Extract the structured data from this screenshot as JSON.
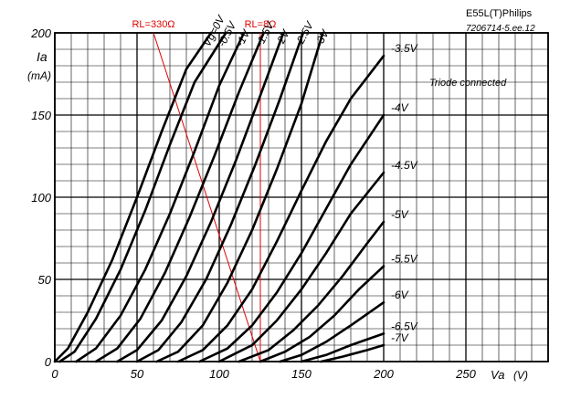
{
  "chart_data": {
    "type": "line",
    "title": "E55L(T)Philips",
    "code": "7206714-5.ee.12",
    "annotation": "Triode connected",
    "ylabel": "Ia",
    "yunit": "(mA)",
    "xlabel": "Va",
    "xunit": "(V)",
    "xlim": [
      0,
      300
    ],
    "ylim": [
      0,
      200
    ],
    "grid": true,
    "x_ticks": [
      "0",
      "50",
      "100",
      "150",
      "200",
      "250"
    ],
    "y_ticks": [
      "0",
      "50",
      "100",
      "150",
      "200"
    ],
    "series": [
      {
        "name": "Vg=0V",
        "x": [
          0,
          8,
          20,
          35,
          50,
          65,
          80,
          95
        ],
        "y": [
          0,
          8,
          30,
          62,
          100,
          140,
          178,
          200
        ]
      },
      {
        "name": "-0.5V",
        "x": [
          3,
          12,
          25,
          40,
          55,
          70,
          85,
          104
        ],
        "y": [
          0,
          6,
          26,
          56,
          92,
          132,
          170,
          200
        ]
      },
      {
        "name": "-1V",
        "x": [
          13,
          25,
          40,
          55,
          70,
          85,
          100,
          115
        ],
        "y": [
          0,
          8,
          28,
          56,
          90,
          128,
          168,
          200
        ]
      },
      {
        "name": "-1.5V",
        "x": [
          25,
          38,
          52,
          67,
          82,
          97,
          112,
          127
        ],
        "y": [
          0,
          8,
          26,
          54,
          88,
          125,
          164,
          200
        ]
      },
      {
        "name": "-2V",
        "x": [
          38,
          50,
          65,
          80,
          95,
          110,
          125,
          139
        ],
        "y": [
          0,
          7,
          25,
          52,
          85,
          122,
          162,
          200
        ]
      },
      {
        "name": "-2.5V",
        "x": [
          50,
          63,
          77,
          92,
          107,
          122,
          137,
          151
        ],
        "y": [
          0,
          7,
          24,
          50,
          83,
          120,
          160,
          200
        ]
      },
      {
        "name": "-3V",
        "x": [
          62,
          75,
          90,
          105,
          120,
          135,
          150,
          163
        ],
        "y": [
          0,
          6,
          22,
          48,
          80,
          117,
          157,
          200
        ]
      },
      {
        "name": "-3.5V",
        "x": [
          75,
          90,
          105,
          120,
          135,
          150,
          165,
          180,
          200
        ],
        "y": [
          0,
          7,
          22,
          44,
          73,
          104,
          134,
          160,
          186
        ]
      },
      {
        "name": "-4V",
        "x": [
          88,
          105,
          120,
          135,
          150,
          165,
          180,
          200
        ],
        "y": [
          0,
          8,
          22,
          42,
          66,
          93,
          120,
          150
        ]
      },
      {
        "name": "-4.5V",
        "x": [
          100,
          120,
          135,
          150,
          165,
          180,
          200
        ],
        "y": [
          0,
          10,
          25,
          44,
          66,
          90,
          115
        ]
      },
      {
        "name": "-5V",
        "x": [
          112,
          130,
          145,
          160,
          175,
          190,
          200
        ],
        "y": [
          0,
          7,
          19,
          34,
          52,
          72,
          85
        ]
      },
      {
        "name": "-5.5V",
        "x": [
          125,
          140,
          155,
          170,
          185,
          200
        ],
        "y": [
          0,
          6,
          15,
          28,
          44,
          58
        ]
      },
      {
        "name": "-6V",
        "x": [
          137,
          150,
          165,
          180,
          190,
          200
        ],
        "y": [
          0,
          4,
          12,
          22,
          29,
          36
        ]
      },
      {
        "name": "-6.5V",
        "x": [
          150,
          165,
          180,
          200
        ],
        "y": [
          0,
          4,
          10,
          17
        ]
      },
      {
        "name": "-7V",
        "x": [
          162,
          175,
          190,
          200
        ],
        "y": [
          0,
          3,
          7,
          10
        ]
      }
    ],
    "load_lines": [
      {
        "name": "RL=330Ω",
        "x": [
          60,
          125
        ],
        "y": [
          200,
          0
        ]
      },
      {
        "name": "RL=8Ω",
        "x": [
          125,
          125
        ],
        "y": [
          200,
          0
        ]
      }
    ]
  }
}
